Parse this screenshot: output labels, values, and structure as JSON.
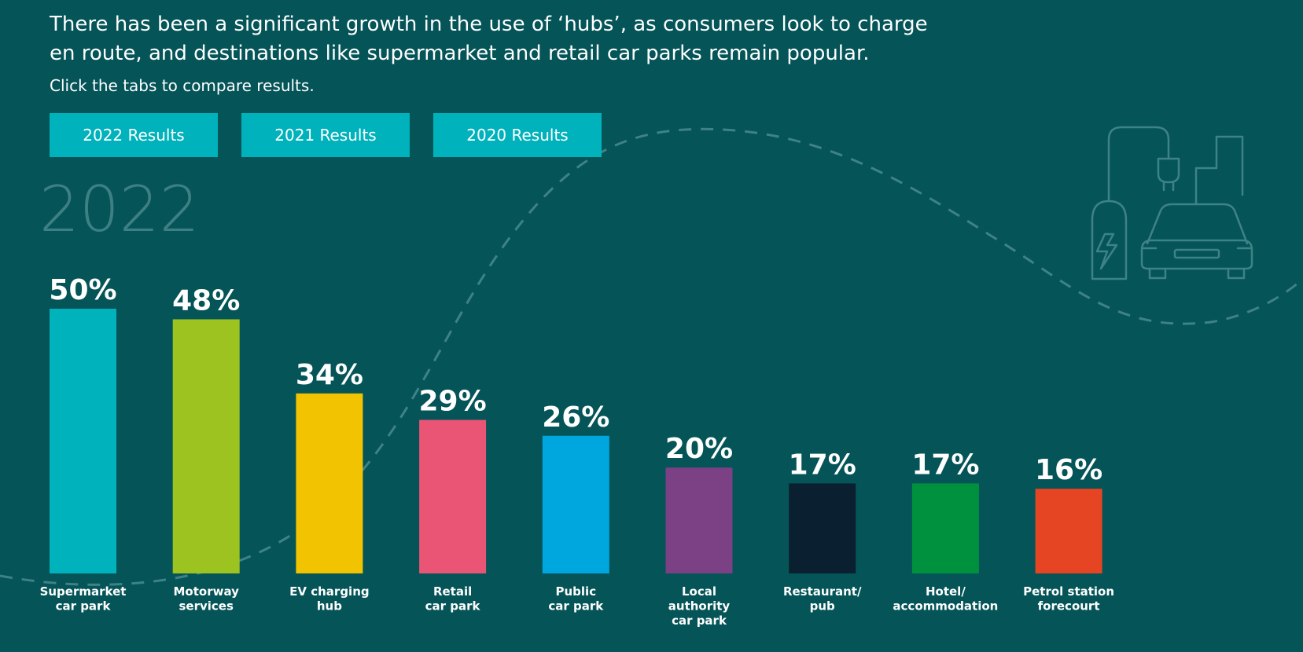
{
  "intro": {
    "text": "There has been a significant growth in the use of ‘hubs’, as consumers look to charge en route, and destinations like supermarket and retail car parks remain popular.",
    "cta": "Click the tabs to compare results."
  },
  "tabs": [
    {
      "label": "2022 Results"
    },
    {
      "label": "2021 Results"
    },
    {
      "label": "2020 Results"
    }
  ],
  "year_label": "2022",
  "chart_data": {
    "type": "bar",
    "title": "2022",
    "xlabel": "",
    "ylabel": "",
    "ylim": [
      0,
      50
    ],
    "grid": false,
    "categories": [
      "Supermarket car park",
      "Motorway services",
      "EV charging hub",
      "Retail car park",
      "Public car park",
      "Local authority car park",
      "Restaurant/ pub",
      "Hotel/ accommodation",
      "Petrol station forecourt"
    ],
    "category_lines": [
      [
        "Supermarket",
        "car park"
      ],
      [
        "Motorway",
        "services"
      ],
      [
        "EV charging",
        "hub"
      ],
      [
        "Retail",
        "car park"
      ],
      [
        "Public",
        "car park"
      ],
      [
        "Local",
        "authority",
        "car park"
      ],
      [
        "Restaurant/",
        "pub"
      ],
      [
        "Hotel/",
        "accommodation"
      ],
      [
        "Petrol station",
        "forecourt"
      ]
    ],
    "values": [
      50,
      48,
      34,
      29,
      26,
      20,
      17,
      17,
      16
    ],
    "value_labels": [
      "50%",
      "48%",
      "34%",
      "29%",
      "26%",
      "20%",
      "17%",
      "17%",
      "16%"
    ],
    "colors": [
      "#00b2bb",
      "#9cc31f",
      "#f2c300",
      "#ea5575",
      "#00a6de",
      "#7b4184",
      "#0a2030",
      "#00913f",
      "#e54523"
    ]
  },
  "theme": {
    "background": "#045458",
    "tab_color": "#00b2bb",
    "year_color": "#3e7f83",
    "deco_color": "#3f8286"
  },
  "icons": {
    "illustration": "ev-charger-car-city-icon"
  }
}
